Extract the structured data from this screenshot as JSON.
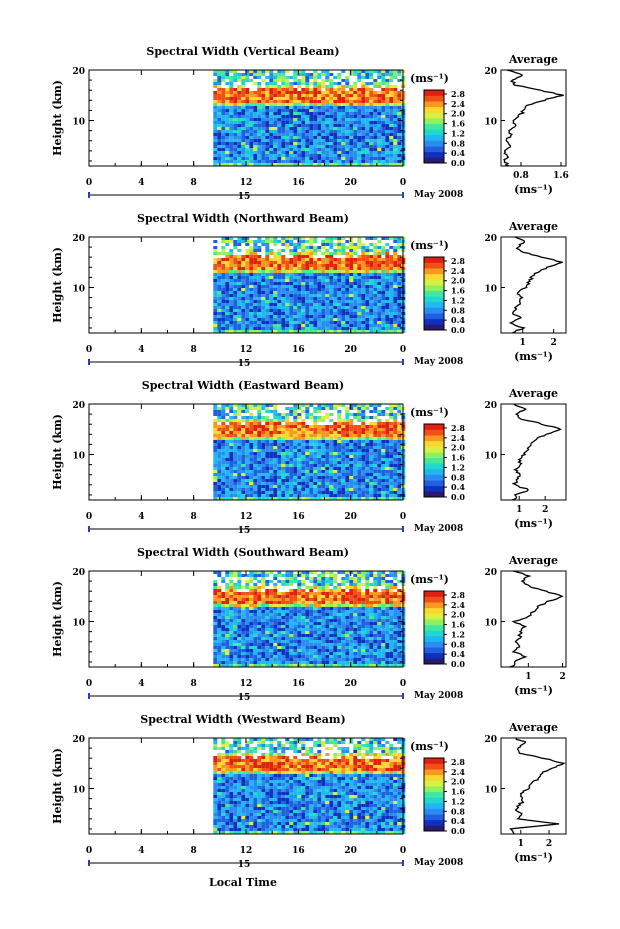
{
  "chart_data": {
    "type": "heatmap",
    "colorbar": {
      "unit_label": "(ms⁻¹)",
      "tick_labels": [
        "2.8",
        "2.4",
        "2.0",
        "1.6",
        "1.2",
        "0.8",
        "0.4",
        "0.0"
      ],
      "colors": [
        "#2a1a70",
        "#1030c0",
        "#2060e0",
        "#2a8cf0",
        "#20b8f0",
        "#20d8d0",
        "#40e8a0",
        "#90f060",
        "#d8f040",
        "#f8d830",
        "#f89820",
        "#f05018",
        "#e02010"
      ]
    },
    "shared": {
      "x_ticks": [
        "0",
        "4",
        "8",
        "12",
        "16",
        "20",
        "0"
      ],
      "x_range": [
        0,
        24
      ],
      "y_ticks": [
        "20",
        "10"
      ],
      "y_range": [
        1,
        20
      ],
      "ylabel": "Height (km)",
      "date_mark": "15",
      "date_label": "May 2008",
      "xlabel": "Local Time",
      "average_title": "Average",
      "average_xlabel": "(ms⁻¹)",
      "data_start_hour": 9.5
    },
    "panels": [
      {
        "title": "Spectral Width (Vertical Beam)",
        "avg_ticks": [
          "0.8",
          "1.6"
        ],
        "avg_range": [
          0.4,
          1.7
        ],
        "avg_tick_values": [
          0.8,
          1.6
        ],
        "profile": {
          "h": [
            1,
            2,
            3,
            4,
            5,
            6,
            7,
            8,
            9,
            10,
            11,
            12,
            13,
            14,
            15,
            16,
            17,
            18,
            19,
            20
          ],
          "v": [
            0.55,
            0.48,
            0.52,
            0.46,
            0.58,
            0.5,
            0.6,
            0.55,
            0.72,
            0.62,
            0.78,
            0.85,
            0.95,
            1.25,
            1.62,
            1.2,
            0.7,
            0.62,
            0.85,
            0.55
          ]
        }
      },
      {
        "title": "Spectral Width (Northward Beam)",
        "avg_ticks": [
          "1",
          "2"
        ],
        "avg_range": [
          0.3,
          2.4
        ],
        "avg_tick_values": [
          1,
          2
        ],
        "profile": {
          "h": [
            1,
            2,
            3,
            4,
            5,
            6,
            7,
            8,
            9,
            10,
            11,
            12,
            13,
            14,
            15,
            16,
            17,
            18,
            19,
            20
          ],
          "v": [
            0.7,
            1.0,
            0.6,
            0.9,
            0.7,
            0.8,
            0.9,
            1.0,
            0.85,
            1.1,
            1.2,
            1.3,
            1.45,
            1.8,
            2.3,
            1.6,
            1.0,
            0.8,
            1.1,
            0.7
          ]
        }
      },
      {
        "title": "Spectral Width (Eastward Beam)",
        "avg_ticks": [
          "1",
          "2"
        ],
        "avg_range": [
          0.3,
          2.8
        ],
        "avg_tick_values": [
          1,
          2
        ],
        "profile": {
          "h": [
            1,
            2,
            3,
            4,
            5,
            6,
            7,
            8,
            9,
            10,
            11,
            12,
            13,
            14,
            15,
            16,
            17,
            18,
            19,
            20
          ],
          "v": [
            0.8,
            0.9,
            1.4,
            0.8,
            0.9,
            1.0,
            0.9,
            1.1,
            1.0,
            1.2,
            1.35,
            1.5,
            1.6,
            2.0,
            2.6,
            1.9,
            1.1,
            0.9,
            1.2,
            0.8
          ]
        }
      },
      {
        "title": "Spectral Width (Southward Beam)",
        "avg_ticks": [
          "1",
          "2"
        ],
        "avg_range": [
          0.2,
          2.1
        ],
        "avg_tick_values": [
          1,
          2
        ],
        "profile": {
          "h": [
            1,
            2,
            3,
            4,
            5,
            6,
            7,
            8,
            9,
            10,
            11,
            12,
            13,
            14,
            15,
            16,
            17,
            18,
            19,
            20
          ],
          "v": [
            0.5,
            0.6,
            0.9,
            0.6,
            0.7,
            0.65,
            0.75,
            0.8,
            0.9,
            0.6,
            1.0,
            1.15,
            1.3,
            1.6,
            2.0,
            1.5,
            1.0,
            0.8,
            1.0,
            0.6
          ]
        }
      },
      {
        "title": "Spectral Width (Westward Beam)",
        "avg_ticks": [
          "1",
          "2"
        ],
        "avg_range": [
          0.3,
          2.6
        ],
        "avg_tick_values": [
          1,
          2
        ],
        "profile": {
          "h": [
            1,
            2,
            3,
            4,
            5,
            6,
            7,
            8,
            9,
            10,
            11,
            12,
            13,
            14,
            15,
            16,
            17,
            18,
            19,
            20
          ],
          "v": [
            0.8,
            0.7,
            2.3,
            0.9,
            1.0,
            0.8,
            1.0,
            1.1,
            1.0,
            1.3,
            1.4,
            1.6,
            1.7,
            2.1,
            2.5,
            1.8,
            1.0,
            0.9,
            1.2,
            0.8
          ]
        }
      }
    ]
  }
}
